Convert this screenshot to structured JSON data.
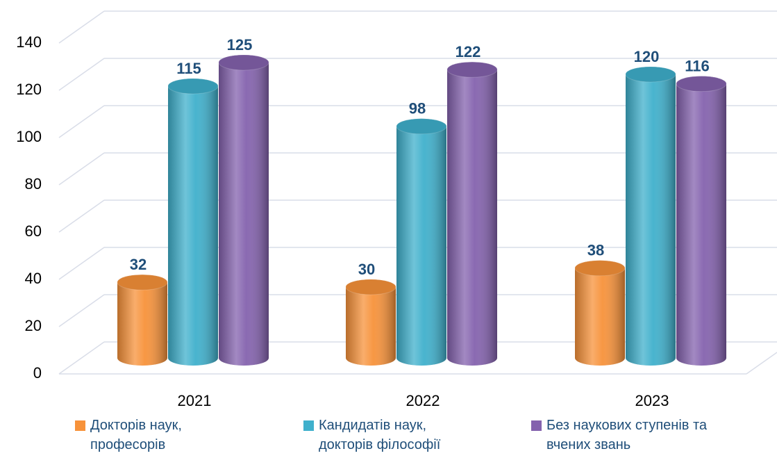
{
  "chart_data": {
    "type": "bar",
    "categories": [
      "2021",
      "2022",
      "2023"
    ],
    "series": [
      {
        "name": "Докторів наук, професорів",
        "color": "#f7923a",
        "values": [
          32,
          30,
          38
        ]
      },
      {
        "name": "Кандидатів наук, докторів філософії",
        "color": "#3fb0cc",
        "values": [
          115,
          98,
          120
        ]
      },
      {
        "name": "Без наукових ступенів та вчених звань",
        "color": "#8462ae",
        "values": [
          125,
          122,
          116
        ]
      }
    ],
    "ylim": [
      0,
      140
    ],
    "yticks": [
      0,
      20,
      40,
      60,
      80,
      100,
      120,
      140
    ],
    "grid": true,
    "legend": "bottom"
  }
}
